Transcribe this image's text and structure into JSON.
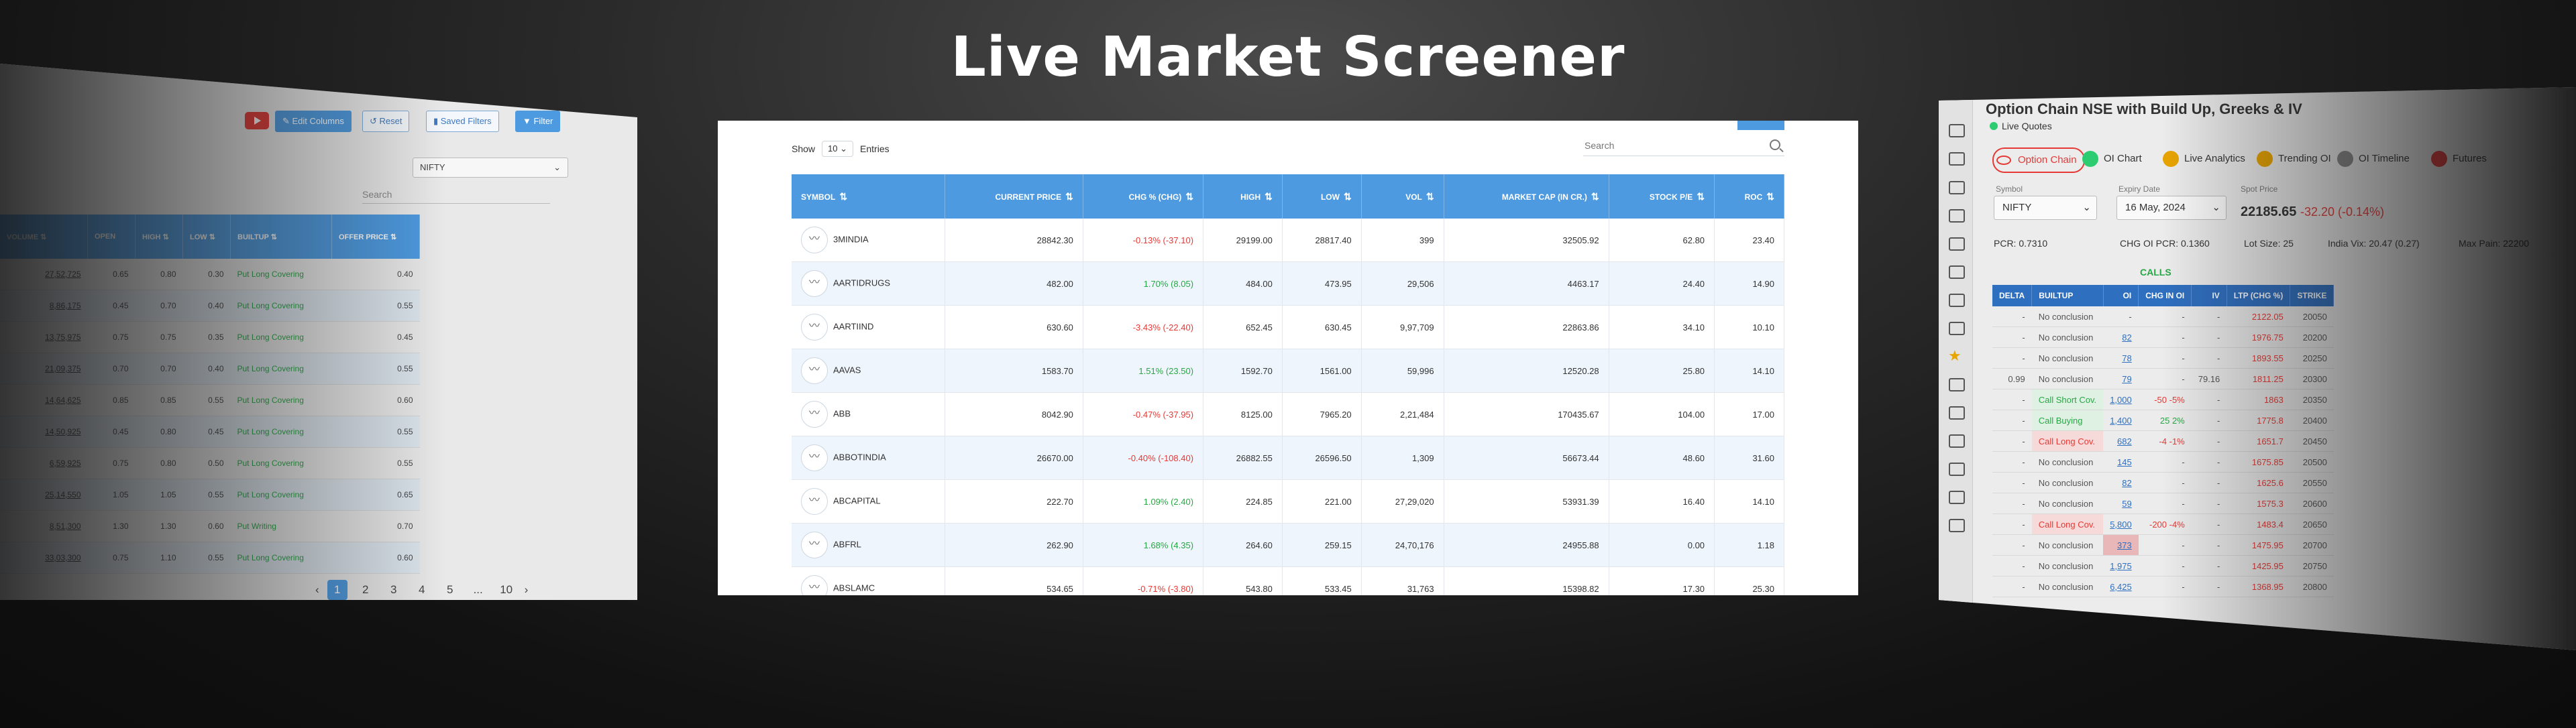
{
  "hero": {
    "title": "Live Market Screener"
  },
  "center": {
    "show_label": "Show",
    "entries_value": "10",
    "entries_label": "Entries",
    "search_placeholder": "Search",
    "columns": [
      "SYMBOL",
      "CURRENT PRICE",
      "CHG % (CHG)",
      "HIGH",
      "LOW",
      "VOL",
      "MARKET CAP (IN CR.)",
      "STOCK P/E",
      "ROC"
    ],
    "rows": [
      {
        "symbol": "3MINDIA",
        "price": "28842.30",
        "chg": "-0.13% (-37.10)",
        "dir": "dn",
        "high": "29199.00",
        "low": "28817.40",
        "vol": "399",
        "mcap": "32505.92",
        "pe": "62.80",
        "roc": "23.40"
      },
      {
        "symbol": "AARTIDRUGS",
        "price": "482.00",
        "chg": "1.70% (8.05)",
        "dir": "up",
        "high": "484.00",
        "low": "473.95",
        "vol": "29,506",
        "mcap": "4463.17",
        "pe": "24.40",
        "roc": "14.90"
      },
      {
        "symbol": "AARTIIND",
        "price": "630.60",
        "chg": "-3.43% (-22.40)",
        "dir": "dn",
        "high": "652.45",
        "low": "630.45",
        "vol": "9,97,709",
        "mcap": "22863.86",
        "pe": "34.10",
        "roc": "10.10"
      },
      {
        "symbol": "AAVAS",
        "price": "1583.70",
        "chg": "1.51% (23.50)",
        "dir": "up",
        "high": "1592.70",
        "low": "1561.00",
        "vol": "59,996",
        "mcap": "12520.28",
        "pe": "25.80",
        "roc": "14.10"
      },
      {
        "symbol": "ABB",
        "price": "8042.90",
        "chg": "-0.47% (-37.95)",
        "dir": "dn",
        "high": "8125.00",
        "low": "7965.20",
        "vol": "2,21,484",
        "mcap": "170435.67",
        "pe": "104.00",
        "roc": "17.00"
      },
      {
        "symbol": "ABBOTINDIA",
        "price": "26670.00",
        "chg": "-0.40% (-108.40)",
        "dir": "dn",
        "high": "26882.55",
        "low": "26596.50",
        "vol": "1,309",
        "mcap": "56673.44",
        "pe": "48.60",
        "roc": "31.60"
      },
      {
        "symbol": "ABCAPITAL",
        "price": "222.70",
        "chg": "1.09% (2.40)",
        "dir": "up",
        "high": "224.85",
        "low": "221.00",
        "vol": "27,29,020",
        "mcap": "53931.39",
        "pe": "16.40",
        "roc": "14.10"
      },
      {
        "symbol": "ABFRL",
        "price": "262.90",
        "chg": "1.68% (4.35)",
        "dir": "up",
        "high": "264.60",
        "low": "259.15",
        "vol": "24,70,176",
        "mcap": "24955.88",
        "pe": "0.00",
        "roc": "1.18"
      },
      {
        "symbol": "ABSLAMC",
        "price": "534.65",
        "chg": "-0.71% (-3.80)",
        "dir": "dn",
        "high": "543.80",
        "low": "533.45",
        "vol": "31,763",
        "mcap": "15398.82",
        "pe": "17.30",
        "roc": "25.30"
      }
    ]
  },
  "left": {
    "buttons": {
      "edit_columns": "Edit Columns",
      "reset": "Reset",
      "saved_filters": "Saved Filters",
      "filter": "Filter"
    },
    "index_select": "NIFTY",
    "search_placeholder": "Search",
    "columns": [
      "VOLUME",
      "OPEN",
      "HIGH",
      "LOW",
      "BUILTUP",
      "OFFER PRICE"
    ],
    "rows": [
      {
        "volume": "27,52,725",
        "open": "0.65",
        "high": "0.80",
        "low": "0.30",
        "builtup": "Put Long Covering",
        "offer": "0.40"
      },
      {
        "volume": "8,86,175",
        "open": "0.45",
        "high": "0.70",
        "low": "0.40",
        "builtup": "Put Long Covering",
        "offer": "0.55"
      },
      {
        "volume": "13,75,975",
        "open": "0.75",
        "high": "0.75",
        "low": "0.35",
        "builtup": "Put Long Covering",
        "offer": "0.45"
      },
      {
        "volume": "21,09,375",
        "open": "0.70",
        "high": "0.70",
        "low": "0.40",
        "builtup": "Put Long Covering",
        "offer": "0.55"
      },
      {
        "volume": "14,64,625",
        "open": "0.85",
        "high": "0.85",
        "low": "0.55",
        "builtup": "Put Long Covering",
        "offer": "0.60"
      },
      {
        "volume": "14,50,925",
        "open": "0.45",
        "high": "0.80",
        "low": "0.45",
        "builtup": "Put Long Covering",
        "offer": "0.55"
      },
      {
        "volume": "6,59,925",
        "open": "0.75",
        "high": "0.80",
        "low": "0.50",
        "builtup": "Put Long Covering",
        "offer": "0.55"
      },
      {
        "volume": "25,14,550",
        "open": "1.05",
        "high": "1.05",
        "low": "0.55",
        "builtup": "Put Long Covering",
        "offer": "0.65"
      },
      {
        "volume": "8,51,300",
        "open": "1.30",
        "high": "1.30",
        "low": "0.60",
        "builtup": "Put Writing",
        "offer": "0.70"
      },
      {
        "volume": "33,03,300",
        "open": "0.75",
        "high": "1.10",
        "low": "0.55",
        "builtup": "Put Long Covering",
        "offer": "0.60"
      }
    ],
    "pages": [
      "1",
      "2",
      "3",
      "4",
      "5",
      "...",
      "10"
    ]
  },
  "right": {
    "title": "Option Chain NSE with Build Up, Greeks & IV",
    "live_quotes": "Live Quotes",
    "tabs": [
      "Option Chain",
      "OI Chart",
      "Live Analytics",
      "Trending OI",
      "OI Timeline",
      "Futures"
    ],
    "symbol_label": "Symbol",
    "symbol_value": "NIFTY",
    "expiry_label": "Expiry Date",
    "expiry_value": "16 May, 2024",
    "spot_label": "Spot Price",
    "spot_value": "22185.65",
    "spot_change": "-32.20 (-0.14%)",
    "pcr": "PCR: 0.7310",
    "chg_oi_pcr": "CHG OI PCR: 0.1360",
    "lot_size": "Lot Size: 25",
    "india_vix": "India Vix: 20.47 (0.27)",
    "max_pain": "Max Pain: 22200",
    "calls_label": "CALLS",
    "columns": [
      "DELTA",
      "BUILTUP",
      "OI",
      "CHG IN OI",
      "IV",
      "LTP (CHG %)",
      "STRIKE"
    ],
    "rows": [
      {
        "delta": "-",
        "builtup": "No conclusion",
        "oi": "-",
        "chg": "-",
        "iv": "-",
        "ltp": "2122.05",
        "strike": "20050"
      },
      {
        "delta": "-",
        "builtup": "No conclusion",
        "oi": "82",
        "chg": "-",
        "iv": "-",
        "ltp": "1976.75",
        "strike": "20200"
      },
      {
        "delta": "-",
        "builtup": "No conclusion",
        "oi": "78",
        "chg": "-",
        "iv": "-",
        "ltp": "1893.55",
        "strike": "20250"
      },
      {
        "delta": "0.99",
        "builtup": "No conclusion",
        "oi": "79",
        "chg": "-",
        "iv": "79.16",
        "ltp": "1811.25",
        "strike": "20300"
      },
      {
        "delta": "-",
        "builtup": "Call Short Cov.",
        "oi": "1,000",
        "chg": "-50 -5%",
        "iv": "-",
        "ltp": "1863",
        "strike": "20350"
      },
      {
        "delta": "-",
        "builtup": "Call Buying",
        "oi": "1,400",
        "chg": "25 2%",
        "iv": "-",
        "ltp": "1775.8",
        "strike": "20400"
      },
      {
        "delta": "-",
        "builtup": "Call Long Cov.",
        "oi": "682",
        "chg": "-4 -1%",
        "iv": "-",
        "ltp": "1651.7",
        "strike": "20450"
      },
      {
        "delta": "-",
        "builtup": "No conclusion",
        "oi": "145",
        "chg": "-",
        "iv": "-",
        "ltp": "1675.85",
        "strike": "20500"
      },
      {
        "delta": "-",
        "builtup": "No conclusion",
        "oi": "82",
        "chg": "-",
        "iv": "-",
        "ltp": "1625.6",
        "strike": "20550"
      },
      {
        "delta": "-",
        "builtup": "No conclusion",
        "oi": "59",
        "chg": "-",
        "iv": "-",
        "ltp": "1575.3",
        "strike": "20600"
      },
      {
        "delta": "-",
        "builtup": "Call Long Cov.",
        "oi": "5,800",
        "chg": "-200 -4%",
        "iv": "-",
        "ltp": "1483.4",
        "strike": "20650"
      },
      {
        "delta": "-",
        "builtup": "No conclusion",
        "oi": "373",
        "chg": "-",
        "iv": "-",
        "ltp": "1475.95",
        "strike": "20700"
      },
      {
        "delta": "-",
        "builtup": "No conclusion",
        "oi": "1,975",
        "chg": "-",
        "iv": "-",
        "ltp": "1425.95",
        "strike": "20750"
      },
      {
        "delta": "-",
        "builtup": "No conclusion",
        "oi": "6,425",
        "chg": "-",
        "iv": "-",
        "ltp": "1368.95",
        "strike": "20800"
      }
    ]
  }
}
